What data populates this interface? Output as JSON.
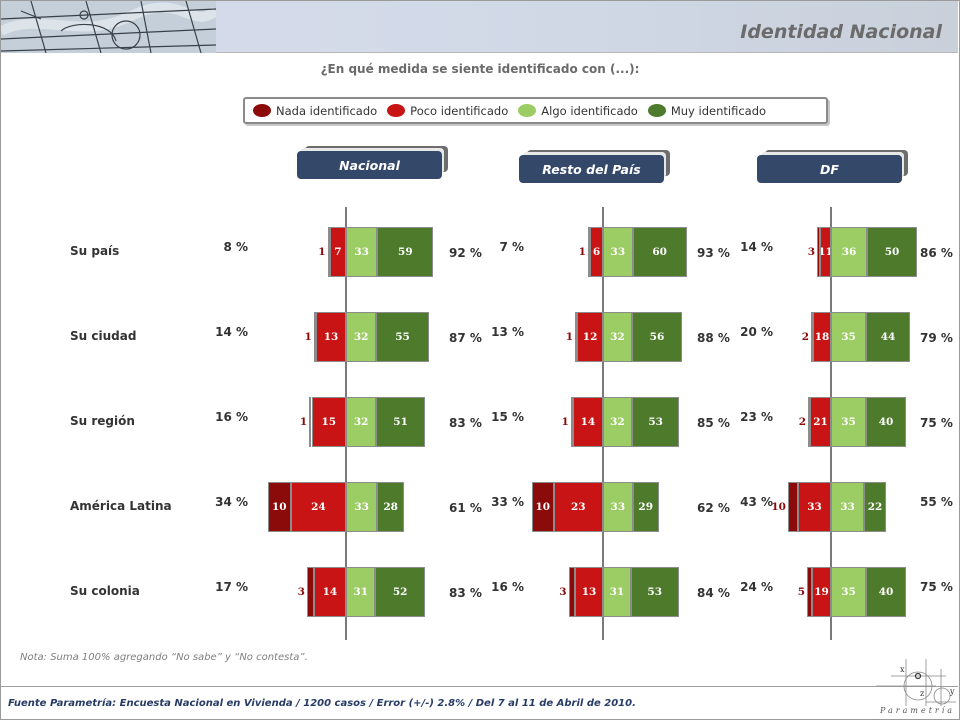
{
  "header": {
    "title": "Identidad Nacional"
  },
  "question": "¿En qué medida se siente identificado con (...):",
  "legend": [
    {
      "label": "Nada identificado",
      "color": "#8b0a0a"
    },
    {
      "label": "Poco identificado",
      "color": "#c81414"
    },
    {
      "label": "Algo identificado",
      "color": "#9ccc64"
    },
    {
      "label": "Muy identificado",
      "color": "#4e7a2c"
    }
  ],
  "chart_data": {
    "type": "bar",
    "subtype": "diverging-stacked-horizontal",
    "title": "Identidad Nacional",
    "subtitle": "¿En qué medida se siente identificado con (...):",
    "categories": [
      "Su país",
      "Su ciudad",
      "Su región",
      "América Latina",
      "Su colonia"
    ],
    "series_names": [
      "Nada identificado",
      "Poco identificado",
      "Algo identificado",
      "Muy identificado"
    ],
    "panels": [
      {
        "name": "Nacional",
        "nada": [
          1,
          1,
          1,
          10,
          3
        ],
        "poco": [
          7,
          13,
          15,
          24,
          14
        ],
        "algo": [
          33,
          32,
          32,
          33,
          31
        ],
        "muy": [
          59,
          55,
          51,
          28,
          52
        ],
        "neg_total_label": [
          "8 %",
          "14 %",
          "16 %",
          "34 %",
          "17 %"
        ],
        "pos_total_label": [
          "92 %",
          "87 %",
          "83 %",
          "61 %",
          "83 %"
        ]
      },
      {
        "name": "Resto del País",
        "nada": [
          1,
          1,
          1,
          10,
          3
        ],
        "poco": [
          6,
          12,
          14,
          23,
          13
        ],
        "algo": [
          33,
          32,
          32,
          33,
          31
        ],
        "muy": [
          60,
          56,
          53,
          29,
          53
        ],
        "neg_total_label": [
          "7 %",
          "13 %",
          "15 %",
          "33 %",
          "16 %"
        ],
        "pos_total_label": [
          "93 %",
          "88 %",
          "85 %",
          "62 %",
          "84 %"
        ]
      },
      {
        "name": "DF",
        "nada": [
          3,
          2,
          2,
          10,
          5
        ],
        "poco": [
          11,
          18,
          21,
          33,
          19
        ],
        "algo": [
          36,
          35,
          35,
          33,
          35
        ],
        "muy": [
          50,
          44,
          40,
          22,
          40
        ],
        "neg_total_label": [
          "14 %",
          "20 %",
          "23 %",
          "43 %",
          "24 %"
        ],
        "pos_total_label": [
          "86 %",
          "79 %",
          "75 %",
          "55 %",
          "75 %"
        ]
      }
    ]
  },
  "note": "Nota: Suma 100%  agregando “No sabe” y “No contesta”.",
  "source": "Fuente Parametría: Encuesta Nacional en Vivienda / 1200 casos / Error (+/-) 2.8% / Del 7 al 11 de Abril de 2010.",
  "logo": {
    "text": "Parametría",
    "letters": [
      "x",
      "z",
      "y"
    ]
  }
}
